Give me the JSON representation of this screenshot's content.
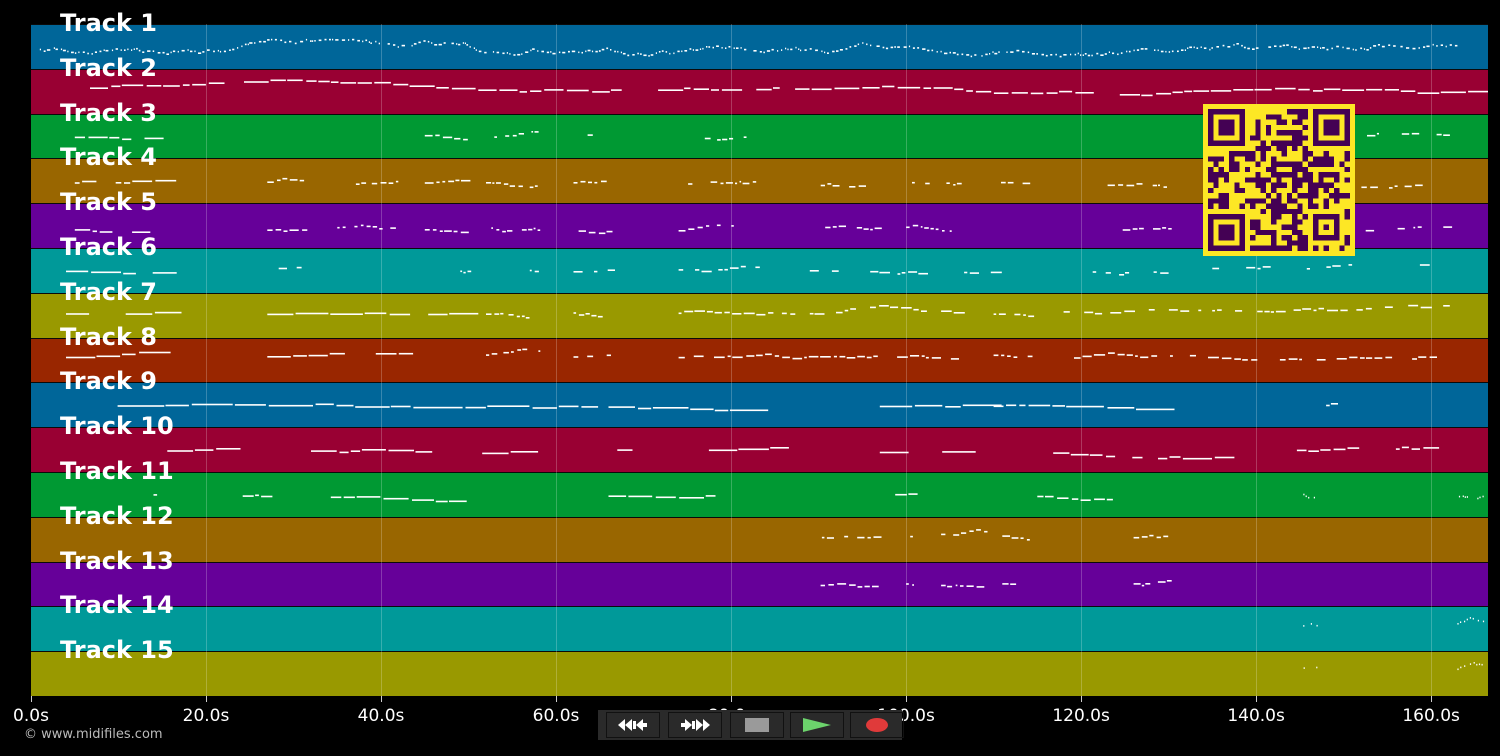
{
  "tracks": [
    {
      "label": "Track 1",
      "color": "#006699"
    },
    {
      "label": "Track 2",
      "color": "#990033"
    },
    {
      "label": "Track 3",
      "color": "#009933"
    },
    {
      "label": "Track 4",
      "color": "#996600"
    },
    {
      "label": "Track 5",
      "color": "#660099"
    },
    {
      "label": "Track 6",
      "color": "#009999"
    },
    {
      "label": "Track 7",
      "color": "#999900"
    },
    {
      "label": "Track 8",
      "color": "#992600"
    },
    {
      "label": "Track 9",
      "color": "#006699"
    },
    {
      "label": "Track 10",
      "color": "#990033"
    },
    {
      "label": "Track 11",
      "color": "#009933"
    },
    {
      "label": "Track 12",
      "color": "#996600"
    },
    {
      "label": "Track 13",
      "color": "#660099"
    },
    {
      "label": "Track 14",
      "color": "#009999"
    },
    {
      "label": "Track 15",
      "color": "#999900"
    }
  ],
  "timeline": {
    "start_seconds": 0,
    "end_seconds": 166.5,
    "ticks": [
      "0.0s",
      "20.0s",
      "40.0s",
      "60.0s",
      "80.0s",
      "100.0s",
      "120.0s",
      "140.0s",
      "160.0s"
    ],
    "tick_values": [
      0,
      20,
      40,
      60,
      80,
      100,
      120,
      140,
      160
    ]
  },
  "note_color": "#ffffff",
  "qr_colors": {
    "background": "#fde725",
    "modules": "#440154"
  },
  "copyright": "© www.midifiles.com",
  "controls": {
    "rewind": {
      "icon": "rewind-icon",
      "bg": "#111111"
    },
    "fast_forward": {
      "icon": "fast-forward-icon",
      "bg": "#111111"
    },
    "stop": {
      "icon": "stop-icon",
      "bg": "#3a3a3a"
    },
    "play": {
      "icon": "play-icon",
      "bg": "#1d5a1d"
    },
    "record": {
      "icon": "record-icon",
      "bg": "#5a1a1a"
    }
  }
}
